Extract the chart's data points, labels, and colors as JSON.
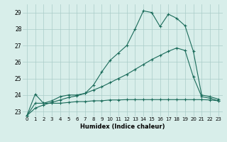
{
  "xlabel": "Humidex (Indice chaleur)",
  "bg_color": "#d8eeea",
  "grid_color": "#aaccc8",
  "line_color": "#1a6b5a",
  "xlim": [
    -0.5,
    23.5
  ],
  "ylim": [
    22.7,
    29.5
  ],
  "xticks": [
    0,
    1,
    2,
    3,
    4,
    5,
    6,
    7,
    8,
    9,
    10,
    11,
    12,
    13,
    14,
    15,
    16,
    17,
    18,
    19,
    20,
    21,
    22,
    23
  ],
  "yticks": [
    23,
    24,
    25,
    26,
    27,
    28,
    29
  ],
  "line1_x": [
    0,
    1,
    2,
    3,
    4,
    5,
    6,
    7,
    8,
    9,
    10,
    11,
    12,
    13,
    14,
    15,
    16,
    17,
    18,
    19,
    20,
    21,
    22,
    23
  ],
  "line1_y": [
    22.75,
    24.05,
    23.5,
    23.65,
    23.9,
    24.0,
    24.0,
    24.1,
    24.6,
    25.4,
    26.1,
    26.55,
    27.0,
    28.0,
    29.1,
    29.0,
    28.15,
    28.9,
    28.65,
    28.2,
    26.65,
    24.0,
    23.9,
    23.75
  ],
  "line2_x": [
    0,
    1,
    2,
    3,
    4,
    5,
    6,
    7,
    8,
    9,
    10,
    11,
    12,
    13,
    14,
    15,
    16,
    17,
    18,
    19,
    20,
    21,
    22,
    23
  ],
  "line2_y": [
    22.75,
    23.2,
    23.4,
    23.55,
    23.7,
    23.85,
    23.95,
    24.1,
    24.3,
    24.5,
    24.75,
    25.0,
    25.25,
    25.55,
    25.85,
    26.15,
    26.4,
    26.65,
    26.85,
    26.7,
    25.1,
    23.9,
    23.8,
    23.65
  ],
  "line3_x": [
    0,
    1,
    2,
    3,
    4,
    5,
    6,
    7,
    8,
    9,
    10,
    11,
    12,
    13,
    14,
    15,
    16,
    17,
    18,
    19,
    20,
    21,
    22,
    23
  ],
  "line3_y": [
    22.75,
    23.5,
    23.5,
    23.5,
    23.5,
    23.55,
    23.6,
    23.6,
    23.65,
    23.65,
    23.7,
    23.7,
    23.72,
    23.72,
    23.72,
    23.72,
    23.72,
    23.72,
    23.72,
    23.72,
    23.72,
    23.72,
    23.7,
    23.65
  ]
}
